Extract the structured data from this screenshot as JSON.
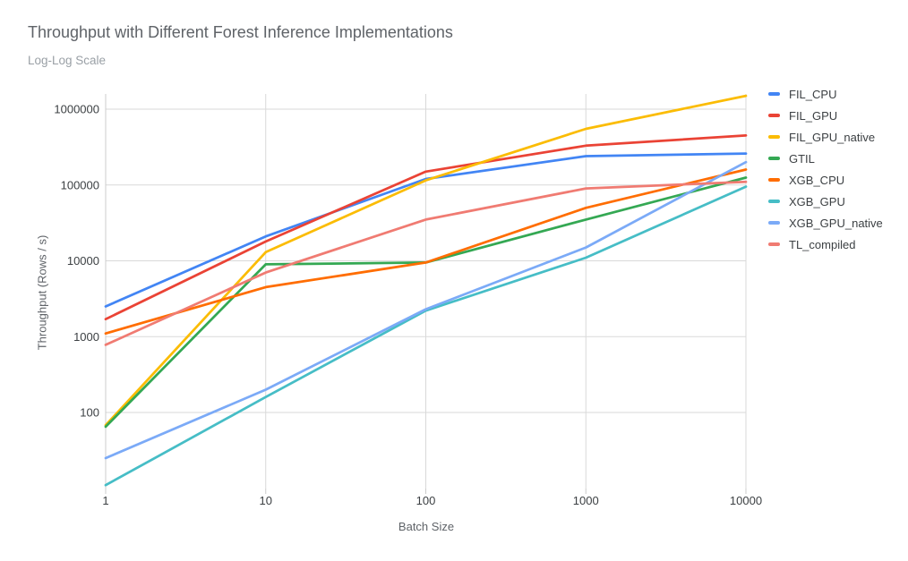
{
  "chart_data": {
    "type": "line",
    "title": "Throughput with Different Forest Inference Implementations",
    "subtitle": "Log-Log Scale",
    "xlabel": "Batch Size",
    "ylabel": "Throughput (Rows / s)",
    "x_scale": "log",
    "y_scale": "log",
    "grid": true,
    "legend_position": "right",
    "x": [
      1,
      10,
      100,
      1000,
      10000
    ],
    "x_tick_labels": [
      "1",
      "10",
      "100",
      "1000",
      "10000"
    ],
    "y_ticks": [
      100,
      1000,
      10000,
      100000,
      1000000
    ],
    "y_tick_labels": [
      "100",
      "1000",
      "10000",
      "100000",
      "1000000"
    ],
    "ylim": [
      10,
      1460000
    ],
    "series": [
      {
        "name": "FIL_CPU",
        "color": "#4285F4",
        "values": [
          2500,
          21000,
          120000,
          240000,
          260000
        ]
      },
      {
        "name": "FIL_GPU",
        "color": "#EA4335",
        "values": [
          1700,
          18000,
          150000,
          330000,
          450000
        ]
      },
      {
        "name": "FIL_GPU_native",
        "color": "#FBBC04",
        "values": [
          68,
          13000,
          115000,
          550000,
          1500000
        ]
      },
      {
        "name": "GTIL",
        "color": "#34A853",
        "values": [
          65,
          9000,
          9500,
          35000,
          125000
        ]
      },
      {
        "name": "XGB_CPU",
        "color": "#FF6D01",
        "values": [
          1100,
          4500,
          9500,
          50000,
          160000
        ]
      },
      {
        "name": "XGB_GPU",
        "color": "#46BDC6",
        "values": [
          11,
          160,
          2200,
          11000,
          95000
        ]
      },
      {
        "name": "XGB_GPU_native",
        "color": "#7BAAF7",
        "values": [
          25,
          200,
          2300,
          15000,
          200000
        ]
      },
      {
        "name": "TL_compiled",
        "color": "#F07B72",
        "values": [
          780,
          7000,
          35000,
          90000,
          110000
        ]
      }
    ]
  },
  "colors": {
    "background": "#ffffff",
    "gridline": "#d9d9d9",
    "axis_line": "#cccccc",
    "tick_label": "#3c4043",
    "title": "#5f6368",
    "subtitle": "#9aa0a6",
    "axis_title": "#5f6368"
  }
}
